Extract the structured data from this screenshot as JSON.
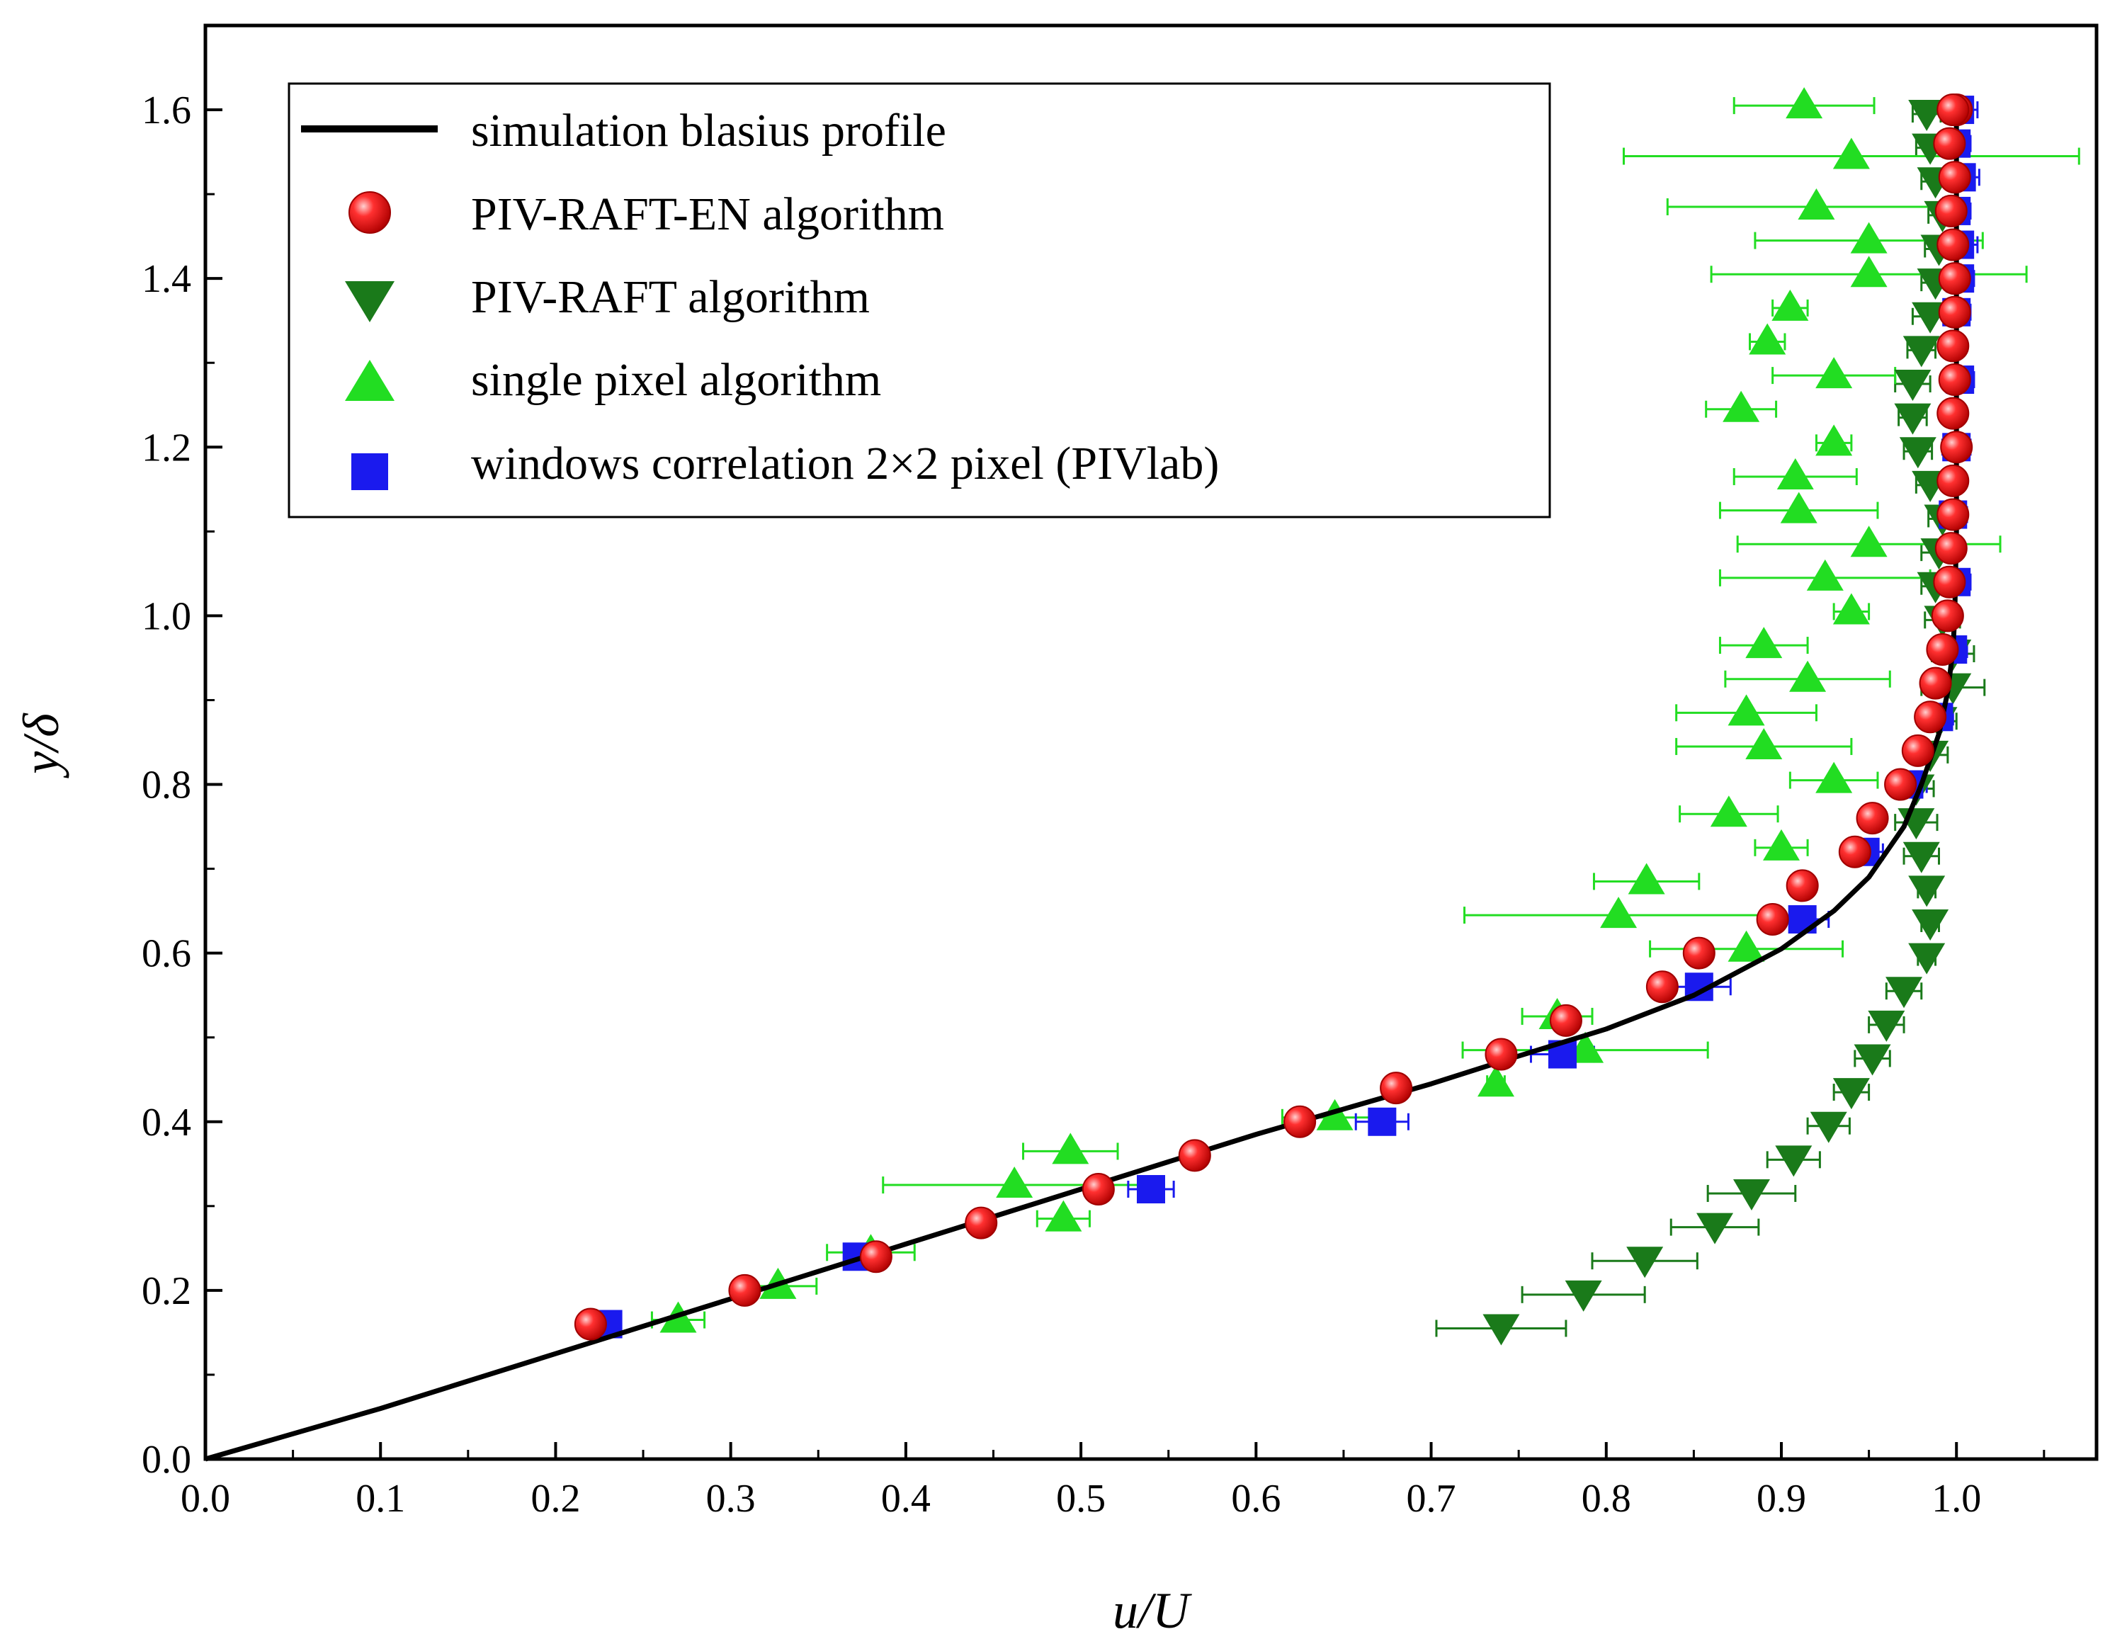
{
  "chart_data": {
    "type": "scatter",
    "title": "",
    "xlabel": "u/U",
    "ylabel": "y/δ",
    "xlim": [
      0.0,
      1.08
    ],
    "ylim": [
      0.0,
      1.7
    ],
    "xticks": [
      "0.0",
      "0.1",
      "0.2",
      "0.3",
      "0.4",
      "0.5",
      "0.6",
      "0.7",
      "0.8",
      "0.9",
      "1.0"
    ],
    "yticks": [
      "0.0",
      "0.2",
      "0.4",
      "0.6",
      "0.8",
      "1.0",
      "1.2",
      "1.4",
      "1.6"
    ],
    "grid": false,
    "legend_position": "top-left",
    "series": [
      {
        "name": "simulation blasius profile",
        "kind": "line",
        "color": "#000000",
        "x": [
          0.0,
          0.1,
          0.2,
          0.3,
          0.4,
          0.5,
          0.6,
          0.7,
          0.75,
          0.8,
          0.85,
          0.9,
          0.93,
          0.95,
          0.97,
          0.98,
          0.99,
          0.995,
          0.998,
          0.999,
          1.0,
          1.0
        ],
        "y": [
          0.0,
          0.06,
          0.125,
          0.19,
          0.255,
          0.32,
          0.385,
          0.445,
          0.478,
          0.51,
          0.55,
          0.605,
          0.65,
          0.69,
          0.75,
          0.8,
          0.86,
          0.91,
          0.96,
          1.0,
          1.1,
          1.6
        ]
      },
      {
        "name": "PIV-RAFT-EN algorithm",
        "kind": "scatter",
        "marker": "sphere",
        "color": "#ee1111",
        "x": [
          0.22,
          0.308,
          0.383,
          0.443,
          0.51,
          0.565,
          0.625,
          0.68,
          0.74,
          0.777,
          0.832,
          0.853,
          0.895,
          0.912,
          0.942,
          0.952,
          0.968,
          0.978,
          0.985,
          0.988,
          0.992,
          0.995,
          0.996,
          0.997,
          0.998,
          0.998,
          1.0,
          0.998,
          0.999,
          0.998,
          0.999,
          0.999,
          0.998,
          0.997,
          0.999,
          0.996,
          1.0,
          0.998
        ],
        "y": [
          0.16,
          0.2,
          0.24,
          0.28,
          0.32,
          0.36,
          0.4,
          0.44,
          0.48,
          0.52,
          0.56,
          0.6,
          0.64,
          0.68,
          0.72,
          0.76,
          0.8,
          0.84,
          0.88,
          0.92,
          0.96,
          1.0,
          1.04,
          1.08,
          1.12,
          1.16,
          1.2,
          1.24,
          1.28,
          1.32,
          1.36,
          1.4,
          1.44,
          1.48,
          1.52,
          1.56,
          1.6,
          1.6
        ]
      },
      {
        "name": "PIV-RAFT algorithm",
        "kind": "scatter",
        "marker": "triangle-down",
        "color": "#1a7a1a",
        "x": [
          0.74,
          0.787,
          0.822,
          0.862,
          0.883,
          0.907,
          0.927,
          0.94,
          0.952,
          0.96,
          0.97,
          0.983,
          0.985,
          0.983,
          0.98,
          0.977,
          0.977,
          0.985,
          0.99,
          0.998,
          0.998,
          0.992,
          0.988,
          0.99,
          0.992,
          0.985,
          0.978,
          0.975,
          0.975,
          0.98,
          0.985,
          0.988,
          0.99,
          0.992,
          0.988,
          0.985,
          0.983
        ],
        "y": [
          0.155,
          0.195,
          0.235,
          0.275,
          0.315,
          0.355,
          0.395,
          0.435,
          0.475,
          0.515,
          0.555,
          0.595,
          0.635,
          0.675,
          0.715,
          0.755,
          0.795,
          0.835,
          0.875,
          0.915,
          0.955,
          0.995,
          1.035,
          1.075,
          1.115,
          1.155,
          1.195,
          1.235,
          1.275,
          1.315,
          1.355,
          1.395,
          1.435,
          1.475,
          1.515,
          1.555,
          1.595
        ],
        "xerr": [
          0.037,
          0.035,
          0.03,
          0.025,
          0.025,
          0.015,
          0.012,
          0.01,
          0.01,
          0.01,
          0.01,
          0.005,
          0.005,
          0.005,
          0.01,
          0.012,
          0.01,
          0.01,
          0.01,
          0.018,
          0.012,
          0.01,
          0.008,
          0.01,
          0.008,
          0.008,
          0.008,
          0.008,
          0.01,
          0.008,
          0.01,
          0.008,
          0.008,
          0.008,
          0.008,
          0.008,
          0.008
        ]
      },
      {
        "name": "single pixel algorithm",
        "kind": "scatter",
        "marker": "triangle-up",
        "color": "#22dd22",
        "x": [
          0.27,
          0.327,
          0.38,
          0.49,
          0.462,
          0.494,
          0.645,
          0.737,
          0.788,
          0.772,
          0.88,
          0.807,
          0.823,
          0.9,
          0.87,
          0.93,
          0.89,
          0.88,
          0.915,
          0.89,
          0.94,
          0.925,
          0.95,
          0.91,
          0.908,
          0.93,
          0.877,
          0.93,
          0.892,
          0.905,
          0.95,
          0.95,
          0.92,
          0.94,
          0.913
        ],
        "y": [
          0.165,
          0.205,
          0.245,
          0.285,
          0.325,
          0.365,
          0.405,
          0.445,
          0.485,
          0.525,
          0.605,
          0.645,
          0.685,
          0.725,
          0.765,
          0.805,
          0.845,
          0.885,
          0.925,
          0.965,
          1.005,
          1.045,
          1.085,
          1.125,
          1.165,
          1.205,
          1.245,
          1.285,
          1.325,
          1.365,
          1.405,
          1.445,
          1.485,
          1.545,
          1.605
        ],
        "xerr": [
          0.015,
          0.022,
          0.025,
          0.015,
          0.075,
          0.027,
          0.03,
          0.005,
          0.07,
          0.02,
          0.055,
          0.088,
          0.03,
          0.015,
          0.028,
          0.025,
          0.05,
          0.04,
          0.047,
          0.025,
          0.01,
          0.06,
          0.075,
          0.045,
          0.035,
          0.01,
          0.02,
          0.035,
          0.01,
          0.01,
          0.09,
          0.065,
          0.085,
          0.13,
          0.04
        ]
      },
      {
        "name": "windows correlation 2×2 pixel (PIVlab)",
        "kind": "scatter",
        "marker": "square",
        "color": "#1a1aee",
        "x": [
          0.23,
          0.372,
          0.54,
          0.672,
          0.775,
          0.853,
          0.912,
          0.948,
          0.973,
          0.99,
          0.998,
          1.0,
          0.998,
          1.0,
          1.002,
          1.0,
          1.002,
          1.002,
          1.0,
          1.003,
          1.0,
          1.002
        ],
        "y": [
          0.16,
          0.24,
          0.32,
          0.4,
          0.48,
          0.56,
          0.64,
          0.72,
          0.8,
          0.88,
          0.96,
          1.04,
          1.12,
          1.2,
          1.28,
          1.36,
          1.4,
          1.44,
          1.48,
          1.52,
          1.56,
          1.6
        ],
        "xerr": [
          0.0,
          0.0,
          0.013,
          0.015,
          0.018,
          0.018,
          0.015,
          0.01,
          0.01,
          0.008,
          0.008,
          0.008,
          0.008,
          0.008,
          0.008,
          0.008,
          0.008,
          0.01,
          0.008,
          0.01,
          0.008,
          0.01
        ]
      }
    ]
  }
}
